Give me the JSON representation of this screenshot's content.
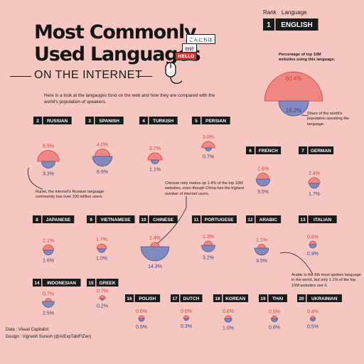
{
  "header": {
    "title_line1": "Most Commonly",
    "title_line2": "Used Languages",
    "title_line3": "ON THE INTERNET",
    "intro": "Here is a look at the langauges fond on the web and how they are compared with the world's population of speakers.",
    "rank_label": "Rank",
    "language_label": "Language",
    "greetings": [
      "こんにちは",
      "你好",
      "HELLO"
    ]
  },
  "colors": {
    "web_share": "#f08783",
    "speakers": "#8289bd",
    "web_stroke": "#d8413b",
    "speakers_stroke": "#4f578f",
    "label_red": "#d8413b",
    "label_blue": "#3b4381",
    "badge": "#1a1a1a"
  },
  "notes": {
    "english_web": "Percentage of top 10M websites using this language.",
    "english_speakers": "Share of the world's population speaking the language.",
    "russian": "Runet, the internet's Russian language community has over 100 million users",
    "chinese": "Chinese only makes up 1.4% of the top 10M websites, even though China has the highest number of internet users.",
    "arabic": "Arabic is the 6th most spoken language in the world, but only 1.1% of the top 10M websites use it."
  },
  "footer": {
    "data": "Data : Visual Capitalist",
    "design": "Design : Vignesh Suresh (@AIExpTablFtZen)"
  },
  "chart_data": {
    "type": "semicircle-pairs",
    "title": "Most Commonly Used Languages on the Internet",
    "series": [
      {
        "name": "Percentage of top 10M websites using this language",
        "unit": "%"
      },
      {
        "name": "Share of the world's population speaking the language",
        "unit": "%"
      }
    ],
    "items": [
      {
        "rank": "1",
        "language": "ENGLISH",
        "web": 60.4,
        "speakers": 16.2,
        "web_label": "60.4%",
        "speakers_label": "16.2%"
      },
      {
        "rank": "2",
        "language": "RUSSIAN",
        "web": 8.5,
        "speakers": 3.3,
        "web_label": "8.5%",
        "speakers_label": "3.3%"
      },
      {
        "rank": "3",
        "language": "SPANISH",
        "web": 4.0,
        "speakers": 6.9,
        "web_label": "4.0%",
        "speakers_label": "6.9%"
      },
      {
        "rank": "4",
        "language": "TURKISH",
        "web": 3.7,
        "speakers": 1.1,
        "web_label": "3.7%",
        "speakers_label": "1.1%"
      },
      {
        "rank": "5",
        "language": "PERSIAN",
        "web": 3.0,
        "speakers": 0.7,
        "web_label": "3.0%",
        "speakers_label": "0.7%"
      },
      {
        "rank": "6",
        "language": "FRENCH",
        "web": 2.6,
        "speakers": 3.5,
        "web_label": "2.6%",
        "speakers_label": "3.5%"
      },
      {
        "rank": "7",
        "language": "GERMAN",
        "web": 2.4,
        "speakers": 1.7,
        "web_label": "2.4%",
        "speakers_label": "1.7%"
      },
      {
        "rank": "8",
        "language": "JAPANESE",
        "web": 2.1,
        "speakers": 1.6,
        "web_label": "2.1%",
        "speakers_label": "1.6%"
      },
      {
        "rank": "9",
        "language": "VIETNAMESE",
        "web": 1.7,
        "speakers": 1.0,
        "web_label": "1.7%",
        "speakers_label": "1.0%"
      },
      {
        "rank": "10",
        "language": "CHINESE",
        "web": 1.4,
        "speakers": 14.3,
        "web_label": "1.4%",
        "speakers_label": "14.3%"
      },
      {
        "rank": "11",
        "language": "PORTUGESE",
        "web": 1.3,
        "speakers": 3.2,
        "web_label": "1.3%",
        "speakers_label": "3.2%"
      },
      {
        "rank": "12",
        "language": "ARABIC",
        "web": 1.1,
        "speakers": 3.5,
        "web_label": "1.1%",
        "speakers_label": "3.5%"
      },
      {
        "rank": "13",
        "language": "ITALIAN",
        "web": 0.8,
        "speakers": 0.9,
        "web_label": "0.8%",
        "speakers_label": "0.9%"
      },
      {
        "rank": "14",
        "language": "INDONESIAN",
        "web": 0.7,
        "speakers": 2.5,
        "web_label": "0.7%",
        "speakers_label": "2.5%"
      },
      {
        "rank": "15",
        "language": "GREEK",
        "web": 0.7,
        "speakers": 0.2,
        "web_label": "0.7%",
        "speakers_label": "0.2%"
      },
      {
        "rank": "16",
        "language": "POLISH",
        "web": 0.6,
        "speakers": 0.6,
        "web_label": "0.6%",
        "speakers_label": "0.6%"
      },
      {
        "rank": "17",
        "language": "DUTCH",
        "web": 0.6,
        "speakers": 0.3,
        "web_label": "0.6%",
        "speakers_label": "0.3%"
      },
      {
        "rank": "18",
        "language": "KOREAN",
        "web": 0.6,
        "speakers": 1.0,
        "web_label": "0.6%",
        "speakers_label": "1.0%"
      },
      {
        "rank": "19",
        "language": "THAI",
        "web": 0.5,
        "speakers": 0.8,
        "web_label": "0.5%",
        "speakers_label": "0.8%"
      },
      {
        "rank": "20",
        "language": "UKRAINIAN",
        "web": 0.4,
        "speakers": 0.5,
        "web_label": "0.4%",
        "speakers_label": "0.5%"
      }
    ]
  }
}
